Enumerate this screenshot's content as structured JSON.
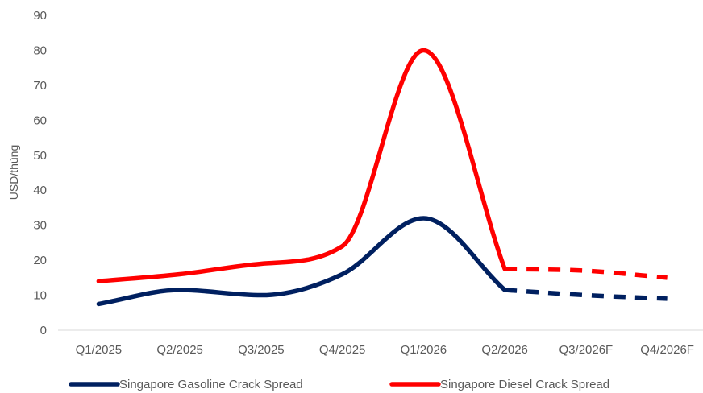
{
  "chart_data": {
    "type": "line",
    "ylabel": "USD/thùng",
    "ylim": [
      0,
      90
    ],
    "yticks": [
      0,
      10,
      20,
      30,
      40,
      50,
      60,
      70,
      80,
      90
    ],
    "categories": [
      "Q1/2025",
      "Q2/2025",
      "Q3/2025",
      "Q4/2025",
      "Q1/2026",
      "Q2/2026",
      "Q3/2026F",
      "Q4/2026F"
    ],
    "forecast_start_index": 5,
    "grid": false,
    "legend_position": "bottom",
    "series": [
      {
        "name": "Singapore Gasoline Crack Spread",
        "color": "#002060",
        "values": [
          7.5,
          11.5,
          10,
          16,
          32,
          11.5,
          10,
          9
        ]
      },
      {
        "name": "Singapore Diesel Crack Spread",
        "color": "#ff0000",
        "values": [
          14,
          16,
          19,
          24,
          80,
          17.5,
          17,
          15
        ]
      }
    ]
  }
}
